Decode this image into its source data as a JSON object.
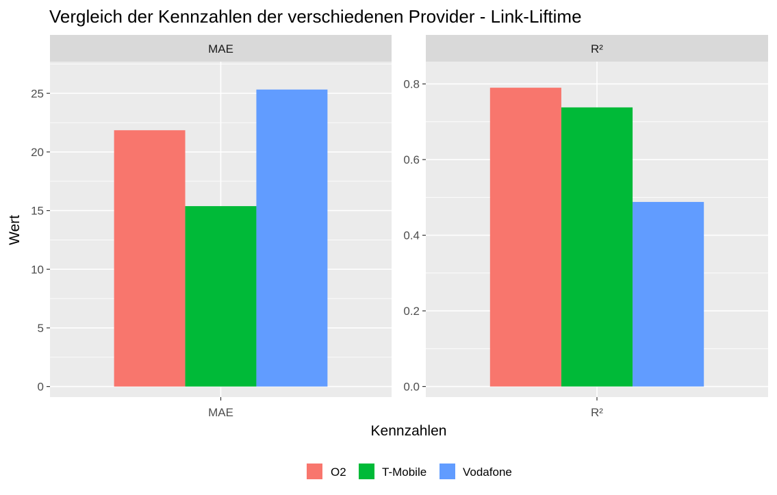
{
  "chart_data": {
    "type": "bar",
    "title": "Vergleich der Kennzahlen der verschiedenen Provider - Link-Liftime",
    "xlabel": "Kennzahlen",
    "ylabel": "Wert",
    "legend_position": "bottom",
    "grid": true,
    "series": [
      {
        "name": "O2",
        "color": "#F8766D"
      },
      {
        "name": "T-Mobile",
        "color": "#00BA38"
      },
      {
        "name": "Vodafone",
        "color": "#619CFF"
      }
    ],
    "facets": [
      {
        "strip": "MAE",
        "category": "MAE",
        "values": [
          21.85,
          15.38,
          25.32
        ],
        "ylim": [
          -0.9,
          27.7
        ],
        "yticks": [
          0,
          5,
          10,
          15,
          20,
          25
        ],
        "ytick_labels": [
          "0",
          "5",
          "10",
          "15",
          "20",
          "25"
        ]
      },
      {
        "strip": "R²",
        "category": "R²",
        "values": [
          0.79,
          0.738,
          0.488
        ],
        "ylim": [
          -0.028,
          0.859
        ],
        "yticks": [
          0.0,
          0.2,
          0.4,
          0.6,
          0.8
        ],
        "ytick_labels": [
          "0.0",
          "0.2",
          "0.4",
          "0.6",
          "0.8"
        ]
      }
    ]
  }
}
